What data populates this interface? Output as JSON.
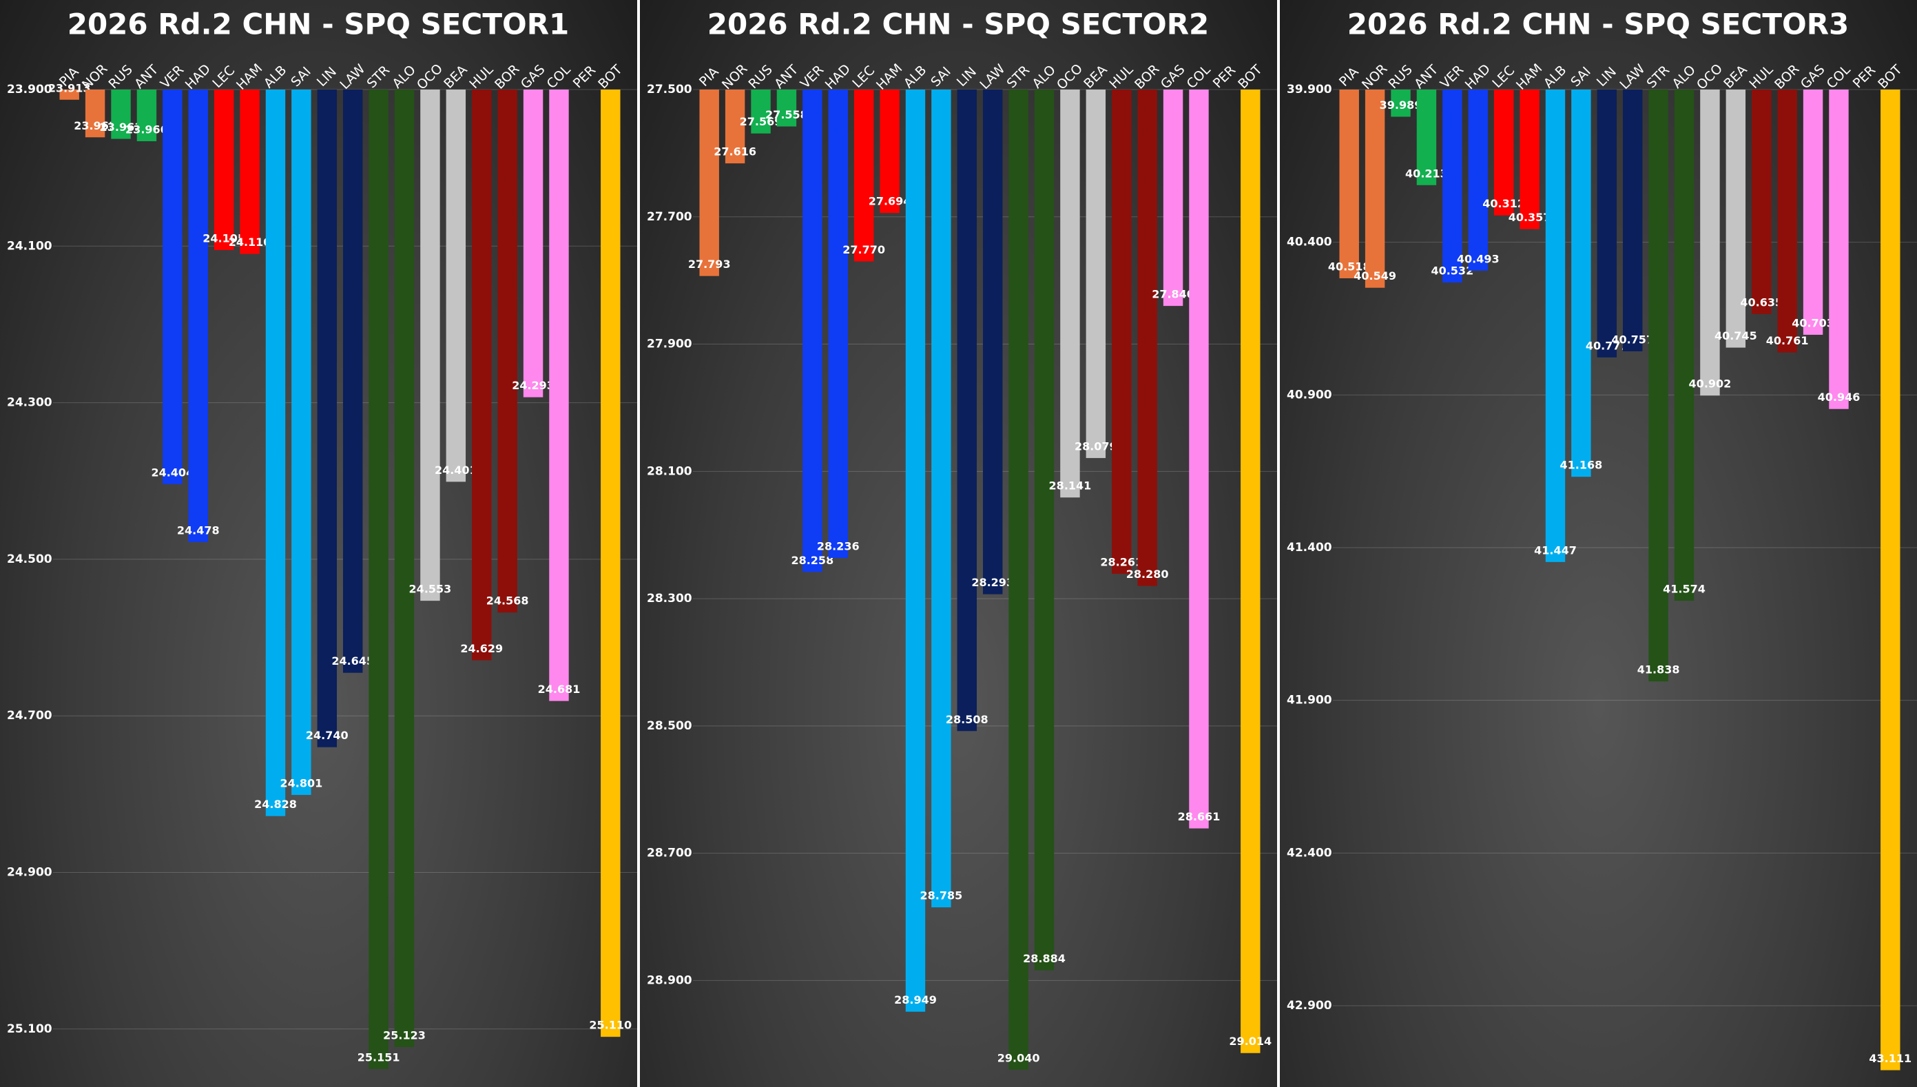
{
  "chart_data": [
    {
      "type": "bar",
      "title": "2026 Rd.2 CHN - SPQ SECTOR1",
      "categories": [
        "PIA",
        "NOR",
        "RUS",
        "ANT",
        "VER",
        "HAD",
        "LEC",
        "HAM",
        "ALB",
        "SAI",
        "LIN",
        "LAW",
        "STR",
        "ALO",
        "OCO",
        "BEA",
        "HUL",
        "BOR",
        "GAS",
        "COL",
        "PER",
        "BOT"
      ],
      "values": [
        23.913,
        23.961,
        23.963,
        23.966,
        24.404,
        24.478,
        24.105,
        24.11,
        24.828,
        24.801,
        24.74,
        24.645,
        25.151,
        25.123,
        24.553,
        24.401,
        24.629,
        24.568,
        24.293,
        24.681,
        null,
        25.11
      ],
      "value_labels": [
        "23.913",
        "23.961",
        "23.963",
        "23.966",
        "24.404",
        "24.478",
        "24.105",
        "24.110",
        "24.828",
        "24.801",
        "24.740",
        "24.645",
        "25.151",
        "25.123",
        "24.553",
        "24.401",
        "24.629",
        "24.568",
        "24.293",
        "24.681",
        null,
        "25.110"
      ],
      "colors": [
        "#e8733a",
        "#e8733a",
        "#12b04f",
        "#12b04f",
        "#0f3cf5",
        "#0f3cf5",
        "#ff0000",
        "#ff0000",
        "#00aeef",
        "#00aeef",
        "#0a1f5c",
        "#0a1f5c",
        "#245217",
        "#245217",
        "#c4c4c4",
        "#c4c4c4",
        "#8e0f0a",
        "#8e0f0a",
        "#ff88ee",
        "#ff88ee",
        null,
        "#ffc000"
      ],
      "ylim": [
        23.9,
        25.16
      ],
      "yticks": [
        {
          "value": 23.9,
          "label": "23.900"
        },
        {
          "value": 24.1,
          "label": "24.100"
        },
        {
          "value": 24.3,
          "label": "24.300"
        },
        {
          "value": 24.5,
          "label": "24.500"
        },
        {
          "value": 24.7,
          "label": "24.700"
        },
        {
          "value": 24.9,
          "label": "24.900"
        },
        {
          "value": 25.1,
          "label": "25.100"
        }
      ],
      "grid": true
    },
    {
      "type": "bar",
      "title": "2026 Rd.2 CHN - SPQ SECTOR2",
      "categories": [
        "PIA",
        "NOR",
        "RUS",
        "ANT",
        "VER",
        "HAD",
        "LEC",
        "HAM",
        "ALB",
        "SAI",
        "LIN",
        "LAW",
        "STR",
        "ALO",
        "OCO",
        "BEA",
        "HUL",
        "BOR",
        "GAS",
        "COL",
        "PER",
        "BOT"
      ],
      "values": [
        27.793,
        27.616,
        27.569,
        27.558,
        28.258,
        28.236,
        27.77,
        27.694,
        28.949,
        28.785,
        28.508,
        28.293,
        29.04,
        28.884,
        28.141,
        28.079,
        28.261,
        28.28,
        27.84,
        28.661,
        null,
        29.014
      ],
      "value_labels": [
        "27.793",
        "27.616",
        "27.569",
        "27.558",
        "28.258",
        "28.236",
        "27.770",
        "27.694",
        "28.949",
        "28.785",
        "28.508",
        "28.293",
        "29.040",
        "28.884",
        "28.141",
        "28.079",
        "28.261",
        "28.280",
        "27.840",
        "28.661",
        null,
        "29.014"
      ],
      "colors": [
        "#e8733a",
        "#e8733a",
        "#12b04f",
        "#12b04f",
        "#0f3cf5",
        "#0f3cf5",
        "#ff0000",
        "#ff0000",
        "#00aeef",
        "#00aeef",
        "#0a1f5c",
        "#0a1f5c",
        "#245217",
        "#245217",
        "#c4c4c4",
        "#c4c4c4",
        "#8e0f0a",
        "#8e0f0a",
        "#ff88ee",
        "#ff88ee",
        null,
        "#ffc000"
      ],
      "ylim": [
        27.5,
        29.05
      ],
      "yticks": [
        {
          "value": 27.5,
          "label": "27.500"
        },
        {
          "value": 27.7,
          "label": "27.700"
        },
        {
          "value": 27.9,
          "label": "27.900"
        },
        {
          "value": 28.1,
          "label": "28.100"
        },
        {
          "value": 28.3,
          "label": "28.300"
        },
        {
          "value": 28.5,
          "label": "28.500"
        },
        {
          "value": 28.7,
          "label": "28.700"
        },
        {
          "value": 28.9,
          "label": "28.900"
        }
      ],
      "grid": true
    },
    {
      "type": "bar",
      "title": "2026 Rd.2 CHN - SPQ SECTOR3",
      "categories": [
        "PIA",
        "NOR",
        "RUS",
        "ANT",
        "VER",
        "HAD",
        "LEC",
        "HAM",
        "ALB",
        "SAI",
        "LIN",
        "LAW",
        "STR",
        "ALO",
        "OCO",
        "BEA",
        "HUL",
        "BOR",
        "GAS",
        "COL",
        "PER",
        "BOT"
      ],
      "values": [
        40.518,
        40.549,
        39.989,
        40.213,
        40.532,
        40.493,
        40.312,
        40.357,
        41.447,
        41.168,
        40.777,
        40.757,
        41.838,
        41.574,
        40.902,
        40.745,
        40.635,
        40.761,
        40.703,
        40.946,
        null,
        43.111
      ],
      "value_labels": [
        "40.518",
        "40.549",
        "39.989",
        "40.213",
        "40.532",
        "40.493",
        "40.312",
        "40.357",
        "41.447",
        "41.168",
        "40.777",
        "40.757",
        "41.838",
        "41.574",
        "40.902",
        "40.745",
        "40.635",
        "40.761",
        "40.703",
        "40.946",
        null,
        "43.111"
      ],
      "colors": [
        "#e8733a",
        "#e8733a",
        "#12b04f",
        "#12b04f",
        "#0f3cf5",
        "#0f3cf5",
        "#ff0000",
        "#ff0000",
        "#00aeef",
        "#00aeef",
        "#0a1f5c",
        "#0a1f5c",
        "#245217",
        "#245217",
        "#c4c4c4",
        "#c4c4c4",
        "#8e0f0a",
        "#8e0f0a",
        "#ff88ee",
        "#ff88ee",
        null,
        "#ffc000"
      ],
      "ylim": [
        39.9,
        43.13
      ],
      "yticks": [
        {
          "value": 39.9,
          "label": "39.900"
        },
        {
          "value": 40.4,
          "label": "40.400"
        },
        {
          "value": 40.9,
          "label": "40.900"
        },
        {
          "value": 41.4,
          "label": "41.400"
        },
        {
          "value": 41.9,
          "label": "41.900"
        },
        {
          "value": 42.4,
          "label": "42.400"
        },
        {
          "value": 42.9,
          "label": "42.900"
        }
      ],
      "grid": true
    }
  ]
}
